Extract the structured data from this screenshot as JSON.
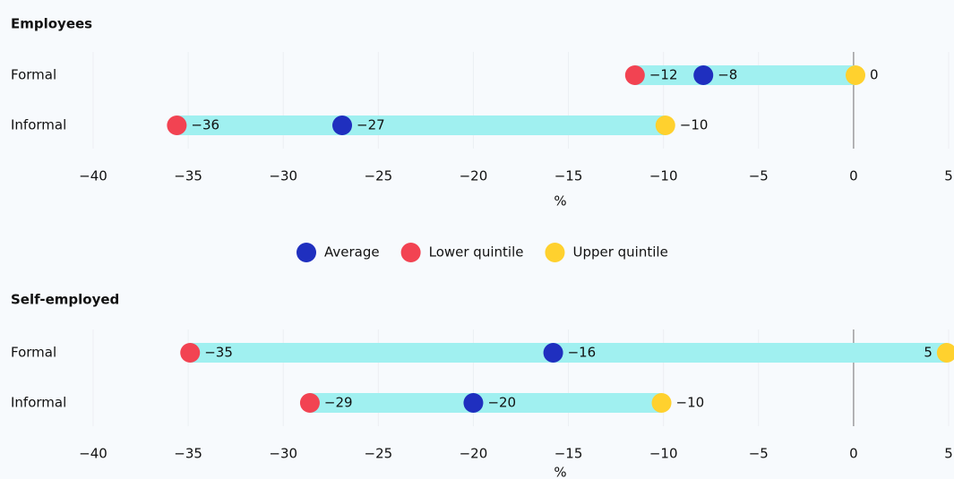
{
  "chart_data": [
    {
      "type": "dumbbell",
      "title": "Employees",
      "categories": [
        "Formal",
        "Informal"
      ],
      "series": [
        {
          "name": "Average",
          "color": "#1f2fbf",
          "values": [
            -7.9,
            -26.9
          ],
          "value_labels": [
            "−8",
            "−27"
          ]
        },
        {
          "name": "Lower quintile",
          "color": "#f24352",
          "values": [
            -11.5,
            -35.6
          ],
          "value_labels": [
            "−12",
            "−36"
          ]
        },
        {
          "name": "Upper quintile",
          "color": "#ffd12e",
          "values": [
            0.1,
            -9.9
          ],
          "value_labels": [
            "0",
            "−10"
          ]
        }
      ],
      "xlim": [
        -40,
        5
      ],
      "xticks": [
        {
          "value": -40,
          "label": "−40"
        },
        {
          "value": -35,
          "label": "−35"
        },
        {
          "value": -30,
          "label": "−30"
        },
        {
          "value": -25,
          "label": "−25"
        },
        {
          "value": -20,
          "label": "−20"
        },
        {
          "value": -15,
          "label": "−15"
        },
        {
          "value": -10,
          "label": "−10"
        },
        {
          "value": -5,
          "label": "−5"
        },
        0,
        5
      ],
      "xlabel": "%",
      "bar_color": "#a0f0f0",
      "grid": true
    },
    {
      "type": "dumbbell",
      "title": "Self-employed",
      "categories": [
        "Formal",
        "Informal"
      ],
      "series": [
        {
          "name": "Average",
          "color": "#1f2fbf",
          "values": [
            -15.8,
            -20.0
          ],
          "value_labels": [
            "−16",
            "−20"
          ]
        },
        {
          "name": "Lower quintile",
          "color": "#f24352",
          "values": [
            -34.9,
            -28.6
          ],
          "value_labels": [
            "−35",
            "−29"
          ]
        },
        {
          "name": "Upper quintile",
          "color": "#ffd12e",
          "values": [
            4.9,
            -10.1
          ],
          "value_labels": [
            "5",
            "−10"
          ]
        }
      ],
      "xlim": [
        -40,
        5
      ],
      "xticks": [
        {
          "value": -40,
          "label": "−40"
        },
        {
          "value": -35,
          "label": "−35"
        },
        {
          "value": -30,
          "label": "−30"
        },
        {
          "value": -25,
          "label": "−25"
        },
        {
          "value": -20,
          "label": "−20"
        },
        {
          "value": -15,
          "label": "−15"
        },
        {
          "value": -10,
          "label": "−10"
        },
        {
          "value": -5,
          "label": "−5"
        },
        0,
        5
      ],
      "xlabel": "%",
      "bar_color": "#a0f0f0",
      "grid": true
    }
  ]
}
